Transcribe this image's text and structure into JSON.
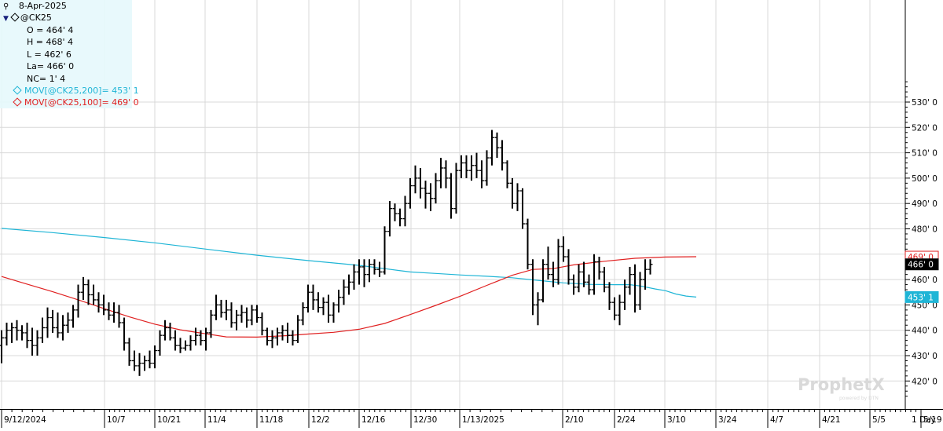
{
  "header": {
    "date": "8-Apr-2025",
    "symbol": "@CK25",
    "open": "O = 464' 4",
    "high": "H = 468' 4",
    "low": "L = 462' 6",
    "last": "La= 466' 0",
    "net_change": "NC= 1' 4",
    "ma200_label": "MOV[@CK25,200]= 453' 1",
    "ma100_label": "MOV[@CK25,100]= 469' 0"
  },
  "watermark": {
    "brand": "ProphetX",
    "powered": "powered by DTN"
  },
  "timeframe": "1 Day",
  "colors": {
    "ma200": "#1fb5d6",
    "ma100": "#e02020",
    "bars": "#000000",
    "grid": "#d9d9d9"
  },
  "chart_data": {
    "type": "ohlc",
    "symbol": "@CK25",
    "yticks": [
      "420' 0",
      "430' 0",
      "440' 0",
      "450' 0",
      "460' 0",
      "470' 0",
      "480' 0",
      "490' 0",
      "500' 0",
      "510' 0",
      "520' 0",
      "530' 0"
    ],
    "ylim": [
      414,
      538
    ],
    "xticks": [
      "9/12/2024",
      "10/7",
      "10/21",
      "11/4",
      "11/18",
      "12/2",
      "12/16",
      "12/30",
      "1/13/2025",
      "2/10",
      "2/24",
      "3/10",
      "3/24",
      "4/7",
      "4/21",
      "5/5",
      "5/19"
    ],
    "price_tags": [
      {
        "label": "469' 0",
        "value": 469,
        "series": "ma100"
      },
      {
        "label": "466' 0",
        "value": 466,
        "series": "last"
      },
      {
        "label": "453' 1",
        "value": 453.1,
        "series": "ma200"
      }
    ],
    "ohlc": [
      [
        434,
        440,
        427,
        437
      ],
      [
        437,
        443,
        434,
        440
      ],
      [
        440,
        443,
        435,
        441
      ],
      [
        441,
        444,
        436,
        440
      ],
      [
        440,
        442,
        436,
        439
      ],
      [
        439,
        443,
        433,
        436
      ],
      [
        436,
        441,
        430,
        434
      ],
      [
        434,
        440,
        430,
        437
      ],
      [
        437,
        445,
        435,
        441
      ],
      [
        441,
        449,
        437,
        445
      ],
      [
        445,
        448,
        439,
        441
      ],
      [
        441,
        447,
        437,
        439
      ],
      [
        439,
        446,
        436,
        442
      ],
      [
        442,
        447,
        439,
        444
      ],
      [
        444,
        450,
        441,
        448
      ],
      [
        448,
        458,
        445,
        455
      ],
      [
        455,
        461,
        452,
        458
      ],
      [
        458,
        460,
        450,
        454
      ],
      [
        454,
        458,
        450,
        452
      ],
      [
        452,
        455,
        447,
        450
      ],
      [
        450,
        454,
        446,
        448
      ],
      [
        448,
        451,
        444,
        446
      ],
      [
        446,
        451,
        443,
        447
      ],
      [
        447,
        450,
        441,
        443
      ],
      [
        443,
        445,
        432,
        435
      ],
      [
        435,
        437,
        426,
        428
      ],
      [
        428,
        432,
        424,
        426
      ],
      [
        426,
        431,
        422,
        427
      ],
      [
        427,
        430,
        424,
        428
      ],
      [
        428,
        432,
        425,
        427
      ],
      [
        427,
        434,
        425,
        432
      ],
      [
        432,
        440,
        430,
        438
      ],
      [
        438,
        444,
        436,
        441
      ],
      [
        441,
        443,
        436,
        437
      ],
      [
        437,
        440,
        432,
        434
      ],
      [
        434,
        437,
        431,
        433
      ],
      [
        433,
        436,
        432,
        434
      ],
      [
        434,
        438,
        432,
        436
      ],
      [
        436,
        441,
        434,
        438
      ],
      [
        438,
        440,
        434,
        436
      ],
      [
        436,
        441,
        432,
        439
      ],
      [
        439,
        448,
        437,
        446
      ],
      [
        446,
        454,
        444,
        450
      ],
      [
        450,
        452,
        445,
        447
      ],
      [
        447,
        452,
        444,
        448
      ],
      [
        448,
        451,
        441,
        443
      ],
      [
        443,
        448,
        440,
        446
      ],
      [
        446,
        450,
        443,
        447
      ],
      [
        447,
        449,
        441,
        444
      ],
      [
        444,
        450,
        442,
        448
      ],
      [
        448,
        450,
        443,
        445
      ],
      [
        445,
        447,
        438,
        440
      ],
      [
        440,
        441,
        434,
        436
      ],
      [
        436,
        440,
        433,
        437
      ],
      [
        437,
        441,
        434,
        439
      ],
      [
        439,
        442,
        436,
        440
      ],
      [
        440,
        443,
        435,
        438
      ],
      [
        438,
        440,
        434,
        436
      ],
      [
        436,
        446,
        435,
        444
      ],
      [
        444,
        451,
        442,
        449
      ],
      [
        449,
        458,
        447,
        455
      ],
      [
        455,
        458,
        448,
        452
      ],
      [
        452,
        455,
        447,
        449
      ],
      [
        449,
        453,
        446,
        451
      ],
      [
        451,
        454,
        443,
        446
      ],
      [
        446,
        451,
        443,
        450
      ],
      [
        450,
        456,
        447,
        453
      ],
      [
        453,
        460,
        450,
        457
      ],
      [
        457,
        462,
        454,
        459
      ],
      [
        459,
        466,
        456,
        463
      ],
      [
        463,
        468,
        458,
        465
      ],
      [
        465,
        468,
        457,
        462
      ],
      [
        462,
        468,
        459,
        466
      ],
      [
        466,
        468,
        462,
        464
      ],
      [
        464,
        467,
        461,
        463
      ],
      [
        463,
        481,
        462,
        479
      ],
      [
        479,
        491,
        477,
        488
      ],
      [
        488,
        490,
        483,
        486
      ],
      [
        486,
        488,
        481,
        484
      ],
      [
        484,
        493,
        481,
        490
      ],
      [
        490,
        500,
        488,
        497
      ],
      [
        497,
        505,
        494,
        500
      ],
      [
        500,
        504,
        492,
        496
      ],
      [
        496,
        499,
        488,
        494
      ],
      [
        494,
        498,
        487,
        492
      ],
      [
        492,
        502,
        490,
        499
      ],
      [
        499,
        508,
        496,
        504
      ],
      [
        504,
        507,
        496,
        500
      ],
      [
        500,
        502,
        484,
        488
      ],
      [
        488,
        506,
        486,
        503
      ],
      [
        503,
        509,
        500,
        506
      ],
      [
        506,
        509,
        500,
        503
      ],
      [
        503,
        509,
        499,
        505
      ],
      [
        505,
        510,
        500,
        503
      ],
      [
        503,
        507,
        496,
        499
      ],
      [
        499,
        511,
        497,
        508
      ],
      [
        508,
        519,
        505,
        516
      ],
      [
        516,
        518,
        508,
        512
      ],
      [
        512,
        515,
        503,
        506
      ],
      [
        506,
        507,
        496,
        498
      ],
      [
        498,
        500,
        488,
        490
      ],
      [
        490,
        498,
        487,
        495
      ],
      [
        495,
        496,
        480,
        482
      ],
      [
        482,
        484,
        464,
        466
      ],
      [
        466,
        468,
        446,
        450
      ],
      [
        450,
        455,
        442,
        452
      ],
      [
        452,
        468,
        451,
        466
      ],
      [
        466,
        473,
        460,
        462
      ],
      [
        462,
        467,
        457,
        460
      ],
      [
        460,
        476,
        458,
        473
      ],
      [
        473,
        477,
        467,
        469
      ],
      [
        469,
        472,
        458,
        460
      ],
      [
        460,
        462,
        454,
        457
      ],
      [
        457,
        466,
        455,
        463
      ],
      [
        463,
        467,
        457,
        459
      ],
      [
        459,
        462,
        454,
        456
      ],
      [
        456,
        470,
        454,
        467
      ],
      [
        467,
        469,
        460,
        463
      ],
      [
        463,
        465,
        455,
        457
      ],
      [
        457,
        459,
        448,
        451
      ],
      [
        451,
        453,
        444,
        446
      ],
      [
        446,
        454,
        442,
        451
      ],
      [
        451,
        460,
        448,
        457
      ],
      [
        457,
        465,
        454,
        462
      ],
      [
        462,
        466,
        447,
        450
      ],
      [
        450,
        463,
        448,
        460
      ],
      [
        460,
        468,
        456,
        464
      ],
      [
        464,
        468,
        462,
        466
      ]
    ],
    "ma200": [
      [
        0,
        480.2
      ],
      [
        10,
        478.5
      ],
      [
        20,
        476.6
      ],
      [
        30,
        474.5
      ],
      [
        40,
        472.0
      ],
      [
        50,
        469.6
      ],
      [
        60,
        467.5
      ],
      [
        70,
        465.6
      ],
      [
        75,
        464.3
      ],
      [
        80,
        463.0
      ],
      [
        85,
        462.4
      ],
      [
        90,
        461.8
      ],
      [
        95,
        461.3
      ],
      [
        100,
        460.7
      ],
      [
        105,
        459.7
      ],
      [
        110,
        458.7
      ],
      [
        115,
        458.1
      ],
      [
        120,
        458.0
      ],
      [
        123,
        458.0
      ],
      [
        125,
        457.5
      ],
      [
        128,
        456.3
      ],
      [
        130,
        455.6
      ],
      [
        132,
        454.3
      ],
      [
        134,
        453.5
      ],
      [
        136,
        453.1
      ]
    ],
    "ma100": [
      [
        0,
        461.2
      ],
      [
        5,
        458.2
      ],
      [
        10,
        455.2
      ],
      [
        15,
        452.0
      ],
      [
        20,
        448.6
      ],
      [
        25,
        445.3
      ],
      [
        30,
        442.4
      ],
      [
        35,
        440.2
      ],
      [
        40,
        438.6
      ],
      [
        44,
        437.4
      ],
      [
        50,
        437.3
      ],
      [
        56,
        437.9
      ],
      [
        60,
        438.5
      ],
      [
        65,
        439.2
      ],
      [
        70,
        440.4
      ],
      [
        75,
        442.7
      ],
      [
        80,
        446.2
      ],
      [
        85,
        449.8
      ],
      [
        90,
        453.6
      ],
      [
        95,
        457.7
      ],
      [
        100,
        461.7
      ],
      [
        104,
        464.0
      ],
      [
        108,
        464.3
      ],
      [
        112,
        465.8
      ],
      [
        118,
        467.2
      ],
      [
        124,
        468.4
      ],
      [
        130,
        468.9
      ],
      [
        136,
        469.0
      ]
    ]
  }
}
